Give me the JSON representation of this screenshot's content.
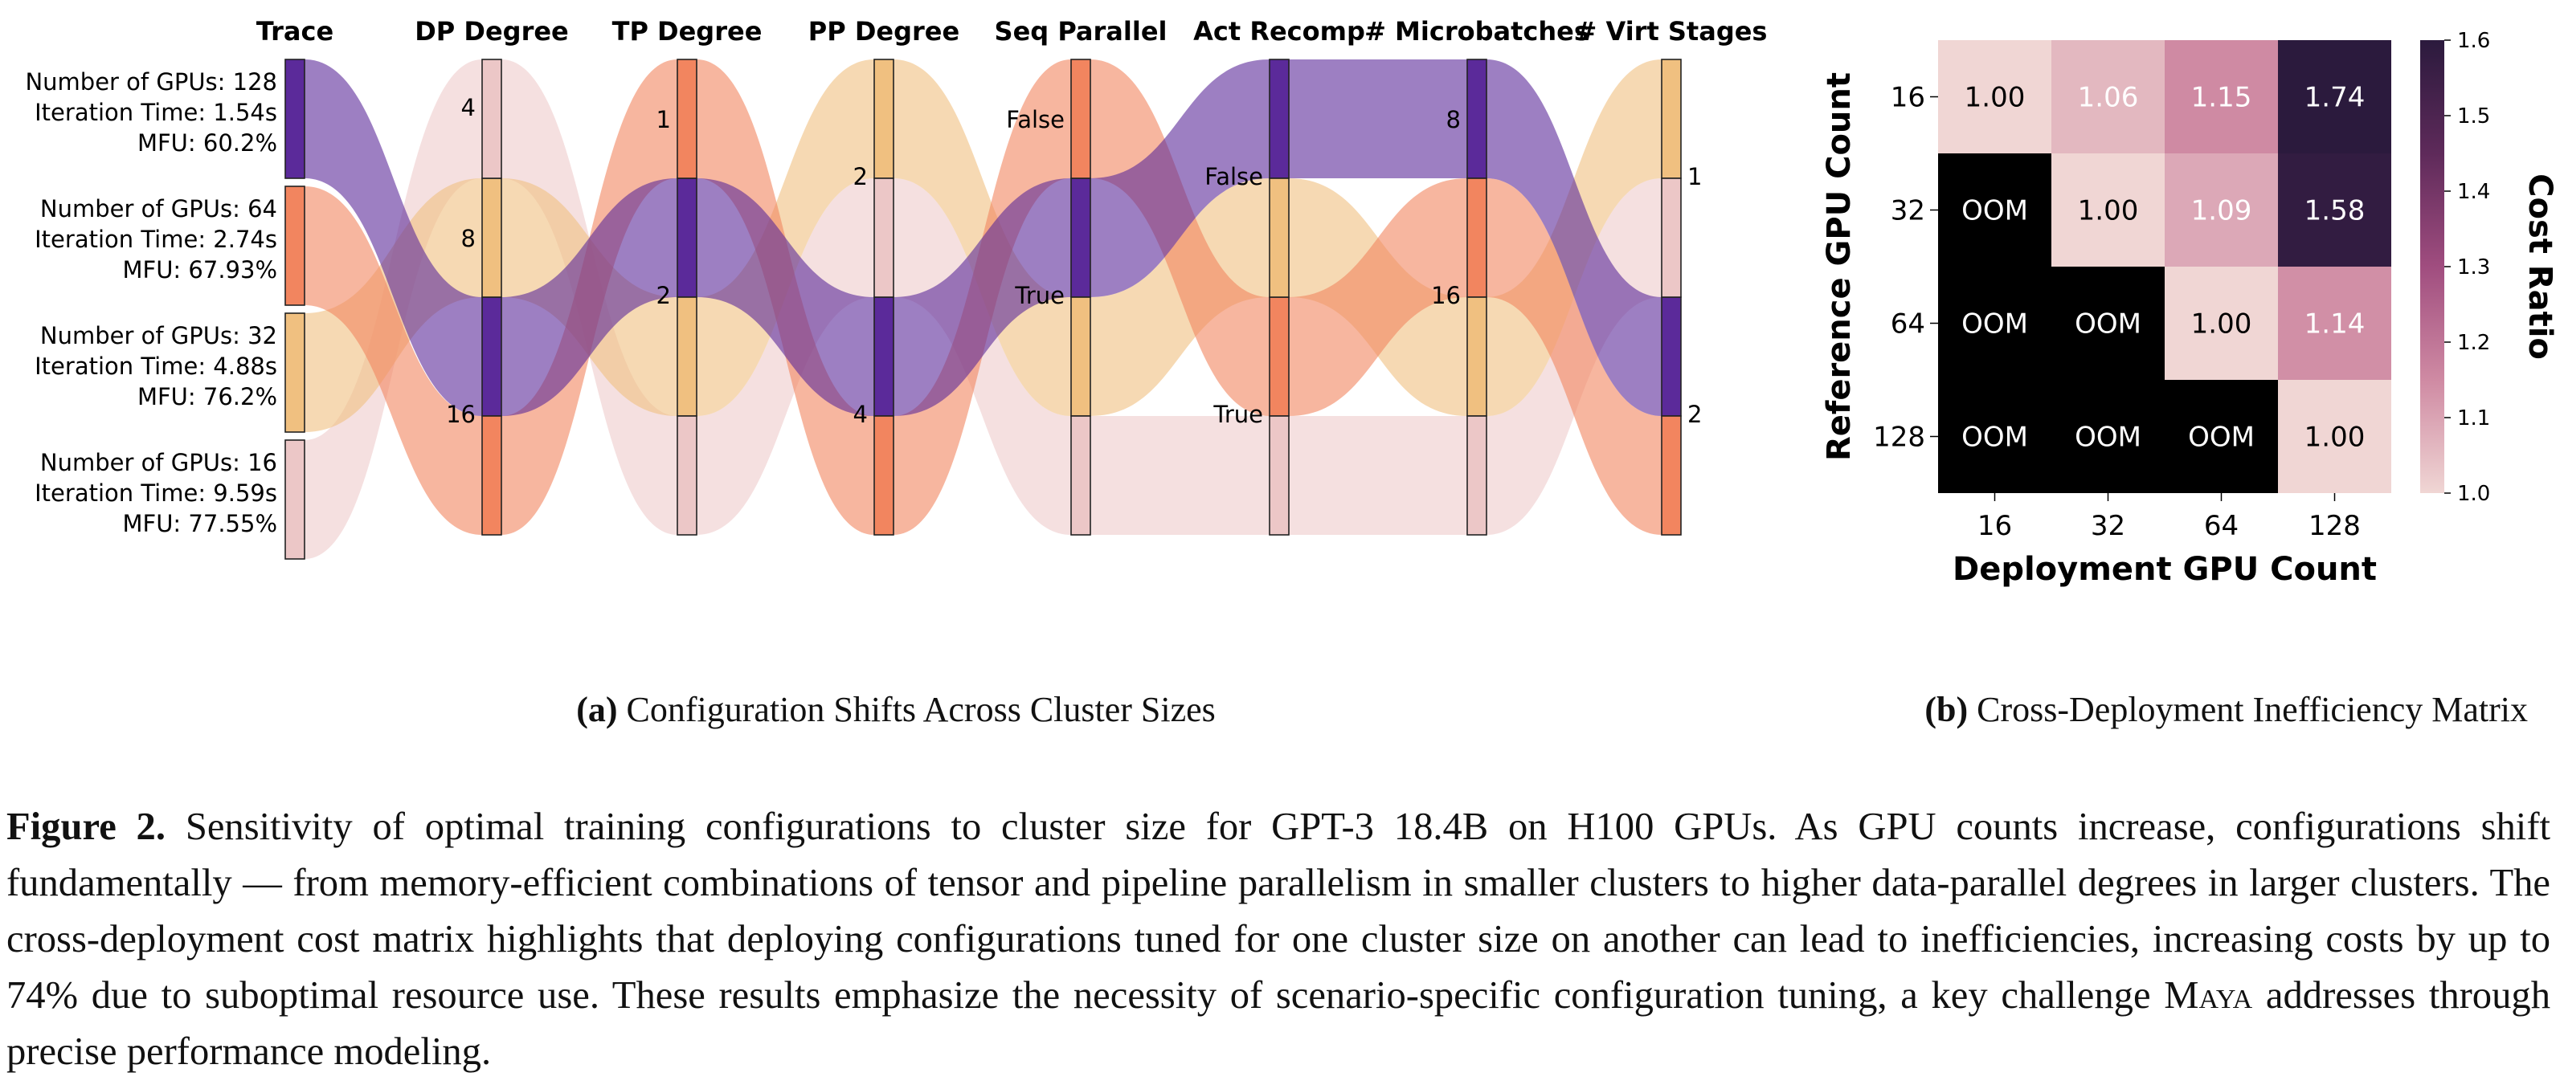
{
  "colors": {
    "n128": "#5b2a9a",
    "n64": "#f2855f",
    "n32": "#f0c080",
    "n16": "#ecc7c7"
  },
  "chart_data": [
    {
      "type": "parallel-sets",
      "axes": [
        "Trace",
        "DP Degree",
        "TP Degree",
        "PP Degree",
        "Seq Parallel",
        "Act Recomp",
        "# Microbatches",
        "# Virt Stages"
      ],
      "traces": [
        {
          "label": [
            "Number of GPUs: 128",
            "Iteration Time: 1.54s",
            "MFU: 60.2%"
          ],
          "gpus": 128,
          "iteration_time_s": 1.54,
          "mfu_pct": 60.2,
          "dp": 16,
          "tp": 2,
          "pp": 4,
          "seq_parallel": "True",
          "act_recomp": "False",
          "microbatches": 8,
          "virt_stages": 2
        },
        {
          "label": [
            "Number of GPUs: 64",
            "Iteration Time: 2.74s",
            "MFU: 67.93%"
          ],
          "gpus": 64,
          "iteration_time_s": 2.74,
          "mfu_pct": 67.93,
          "dp": 16,
          "tp": 1,
          "pp": 4,
          "seq_parallel": "False",
          "act_recomp": "True",
          "microbatches": 16,
          "virt_stages": 2
        },
        {
          "label": [
            "Number of GPUs: 32",
            "Iteration Time: 4.88s",
            "MFU: 76.2%"
          ],
          "gpus": 32,
          "iteration_time_s": 4.88,
          "mfu_pct": 76.2,
          "dp": 8,
          "tp": 2,
          "pp": 2,
          "seq_parallel": "True",
          "act_recomp": "False",
          "microbatches": 16,
          "virt_stages": 1
        },
        {
          "label": [
            "Number of GPUs: 16",
            "Iteration Time: 9.59s",
            "MFU: 77.55%"
          ],
          "gpus": 16,
          "iteration_time_s": 9.59,
          "mfu_pct": 77.55,
          "dp": 4,
          "tp": 2,
          "pp": 2,
          "seq_parallel": "True",
          "act_recomp": "True",
          "microbatches": 16,
          "virt_stages": 1
        }
      ],
      "category_labels": {
        "DP Degree": [
          "4",
          "8",
          "16"
        ],
        "TP Degree": [
          "1",
          "2"
        ],
        "PP Degree": [
          "2",
          "4"
        ],
        "Seq Parallel": [
          "False",
          "True"
        ],
        "Act Recomp": [
          "False",
          "True"
        ],
        "# Microbatches": [
          "8",
          "16"
        ],
        "# Virt Stages": [
          "1",
          "2"
        ]
      }
    },
    {
      "type": "heatmap",
      "xlabel": "Deployment GPU Count",
      "ylabel": "Reference GPU Count",
      "x": [
        "16",
        "32",
        "64",
        "128"
      ],
      "y": [
        "16",
        "32",
        "64",
        "128"
      ],
      "values": [
        [
          1.0,
          1.06,
          1.15,
          1.74
        ],
        [
          null,
          1.0,
          1.09,
          1.58
        ],
        [
          null,
          null,
          1.0,
          1.14
        ],
        [
          null,
          null,
          null,
          1.0
        ]
      ],
      "cell_text": [
        [
          "1.00",
          "1.06",
          "1.15",
          "1.74"
        ],
        [
          "OOM",
          "1.00",
          "1.09",
          "1.58"
        ],
        [
          "OOM",
          "OOM",
          "1.00",
          "1.14"
        ],
        [
          "OOM",
          "OOM",
          "OOM",
          "1.00"
        ]
      ],
      "colorbar": {
        "label": "Cost Ratio",
        "range": [
          1.0,
          1.6
        ],
        "ticks": [
          "1.0",
          "1.1",
          "1.2",
          "1.3",
          "1.4",
          "1.5",
          "1.6"
        ]
      },
      "colormap": [
        "#f0d6d4",
        "#cf8aa3",
        "#a04d7f",
        "#5e2a5a",
        "#2b1a3d"
      ],
      "oom_color": "#000000"
    }
  ],
  "captions": {
    "a_label": "(a)",
    "a_text": "Configuration Shifts Across Cluster Sizes",
    "b_label": "(b)",
    "b_text": "Cross-Deployment Inefficiency Matrix",
    "figure_label": "Figure 2.",
    "figure_text_1": "Sensitivity of optimal training configurations to cluster size for GPT-3 18.4B on H100 GPUs. As GPU counts increase, configurations shift fundamentally — from memory-efficient combinations of tensor and pipeline parallelism in smaller clusters to higher data-parallel degrees in larger clusters. The cross-deployment cost matrix highlights that deploying configurations tuned for one cluster size on another can lead to inefficiencies, increasing costs by up to 74% due to suboptimal resource use. These results emphasize the necessity of scenario-specific configuration tuning, a key challenge",
    "figure_smallcaps": "Maya",
    "figure_text_2": "addresses through precise performance modeling."
  }
}
